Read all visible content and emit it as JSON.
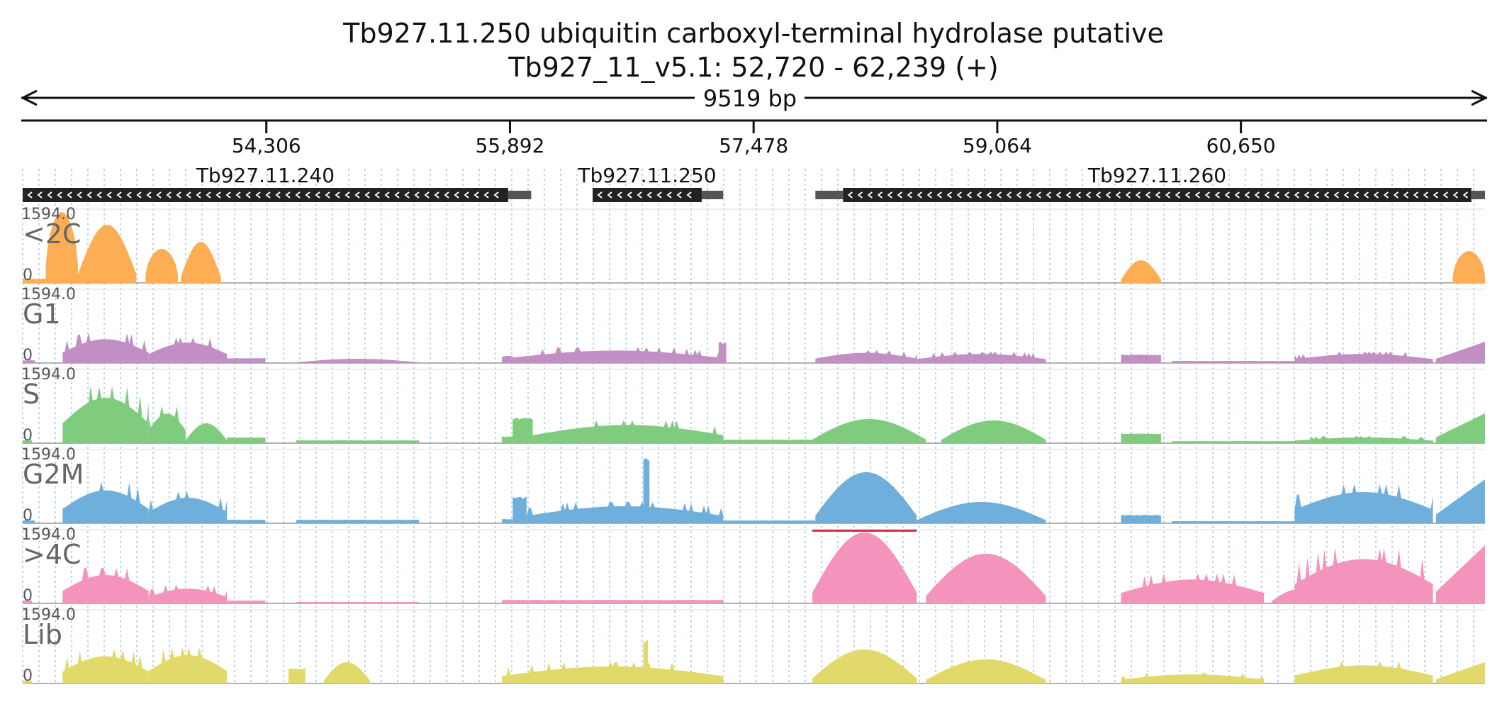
{
  "header": {
    "title_line1": "Tb927.11.250  ubiquitin carboxyl-terminal hydrolase  putative",
    "title_line2": "Tb927_11_v5.1: 52,720 - 62,239 (+)",
    "span_label": "9519 bp"
  },
  "chart_data": {
    "type": "area",
    "title": "Tb927.11.250  ubiquitin carboxyl-terminal hydrolase  putative",
    "locus": {
      "chrom": "Tb927_11_v5.1",
      "start": 52720,
      "end": 62239,
      "strand": "+"
    },
    "span_bp": 9519,
    "xlim": [
      52720,
      62239
    ],
    "x_ticks": [
      {
        "pos": 54306,
        "label": "54,306"
      },
      {
        "pos": 55892,
        "label": "55,892"
      },
      {
        "pos": 57478,
        "label": "57,478"
      },
      {
        "pos": 59064,
        "label": "59,064"
      },
      {
        "pos": 60650,
        "label": "60,650"
      }
    ],
    "genes": [
      {
        "name": "Tb927.11.240",
        "start": 52720,
        "end": 55880,
        "utr_start": 55880,
        "utr_end": 56030,
        "strand": "-"
      },
      {
        "name": "Tb927.11.250",
        "start": 56430,
        "end": 57140,
        "utr_start": 57140,
        "utr_end": 57280,
        "strand": "-"
      },
      {
        "name": "Tb927.11.260",
        "start": 58060,
        "end": 62150,
        "utr_start": 57880,
        "utr_end": 58060,
        "utr2_start": 62150,
        "utr2_end": 62239,
        "strand": "-"
      }
    ],
    "y_max_label": "1594.0",
    "y_min_label": "0",
    "ylim": [
      0,
      1594
    ],
    "series": [
      {
        "name": "<2C",
        "color": "#FDAE55",
        "islands": [
          {
            "start": 52720,
            "end": 52870,
            "peak": 0.06,
            "shape": "flat"
          },
          {
            "start": 52870,
            "end": 53080,
            "peak": 1.0,
            "shape": "saw"
          },
          {
            "start": 53080,
            "end": 53460,
            "peak": 0.82,
            "shape": "hump"
          },
          {
            "start": 53520,
            "end": 53730,
            "peak": 0.48,
            "shape": "saw"
          },
          {
            "start": 53750,
            "end": 54010,
            "peak": 0.58,
            "shape": "hump"
          },
          {
            "start": 59870,
            "end": 60130,
            "peak": 0.32,
            "shape": "hump"
          },
          {
            "start": 62030,
            "end": 62239,
            "peak": 0.45,
            "shape": "saw"
          }
        ]
      },
      {
        "name": "G1",
        "color": "#C28FC4",
        "islands": [
          {
            "start": 52720,
            "end": 52800,
            "peak": 0.04,
            "shape": "flat"
          },
          {
            "start": 52980,
            "end": 53540,
            "peak": 0.42,
            "shape": "spiky"
          },
          {
            "start": 53540,
            "end": 54050,
            "peak": 0.36,
            "shape": "spiky"
          },
          {
            "start": 54050,
            "end": 54300,
            "peak": 0.07,
            "shape": "flat"
          },
          {
            "start": 54500,
            "end": 55300,
            "peak": 0.06,
            "shape": "hump"
          },
          {
            "start": 55840,
            "end": 55910,
            "peak": 0.1,
            "shape": "flat"
          },
          {
            "start": 55910,
            "end": 57250,
            "peak": 0.22,
            "shape": "spiky"
          },
          {
            "start": 57250,
            "end": 57300,
            "peak": 0.3,
            "shape": "flat"
          },
          {
            "start": 57880,
            "end": 58540,
            "peak": 0.18,
            "shape": "spiky"
          },
          {
            "start": 58540,
            "end": 59380,
            "peak": 0.16,
            "shape": "spiky"
          },
          {
            "start": 59870,
            "end": 60130,
            "peak": 0.12,
            "shape": "flat"
          },
          {
            "start": 60200,
            "end": 61000,
            "peak": 0.03,
            "shape": "flat"
          },
          {
            "start": 61000,
            "end": 61900,
            "peak": 0.16,
            "shape": "spiky"
          },
          {
            "start": 61920,
            "end": 62239,
            "peak": 0.3,
            "shape": "rise"
          }
        ]
      },
      {
        "name": "S",
        "color": "#7FCC7E",
        "islands": [
          {
            "start": 52720,
            "end": 52780,
            "peak": 0.04,
            "shape": "flat"
          },
          {
            "start": 52980,
            "end": 53540,
            "peak": 0.8,
            "shape": "spiky"
          },
          {
            "start": 53540,
            "end": 53780,
            "peak": 0.52,
            "shape": "spiky"
          },
          {
            "start": 53780,
            "end": 54050,
            "peak": 0.28,
            "shape": "hump"
          },
          {
            "start": 54050,
            "end": 54300,
            "peak": 0.08,
            "shape": "flat"
          },
          {
            "start": 54500,
            "end": 55300,
            "peak": 0.04,
            "shape": "flat"
          },
          {
            "start": 55840,
            "end": 55910,
            "peak": 0.1,
            "shape": "flat"
          },
          {
            "start": 55910,
            "end": 56040,
            "peak": 0.36,
            "shape": "flat"
          },
          {
            "start": 56040,
            "end": 57280,
            "peak": 0.32,
            "shape": "spiky"
          },
          {
            "start": 57280,
            "end": 57860,
            "peak": 0.05,
            "shape": "flat"
          },
          {
            "start": 57860,
            "end": 58600,
            "peak": 0.34,
            "shape": "hump"
          },
          {
            "start": 58700,
            "end": 59380,
            "peak": 0.32,
            "shape": "hump"
          },
          {
            "start": 59870,
            "end": 60130,
            "peak": 0.14,
            "shape": "flat"
          },
          {
            "start": 60200,
            "end": 61000,
            "peak": 0.03,
            "shape": "flat"
          },
          {
            "start": 61000,
            "end": 61900,
            "peak": 0.1,
            "shape": "spiky"
          },
          {
            "start": 61920,
            "end": 62239,
            "peak": 0.42,
            "shape": "rise"
          }
        ]
      },
      {
        "name": "G2M",
        "color": "#6EAFDB",
        "islands": [
          {
            "start": 52720,
            "end": 52800,
            "peak": 0.04,
            "shape": "flat"
          },
          {
            "start": 52980,
            "end": 53540,
            "peak": 0.58,
            "shape": "spiky"
          },
          {
            "start": 53540,
            "end": 54050,
            "peak": 0.45,
            "shape": "spiky"
          },
          {
            "start": 54050,
            "end": 54300,
            "peak": 0.05,
            "shape": "flat"
          },
          {
            "start": 54500,
            "end": 55300,
            "peak": 0.05,
            "shape": "flat"
          },
          {
            "start": 55840,
            "end": 55910,
            "peak": 0.06,
            "shape": "flat"
          },
          {
            "start": 55910,
            "end": 56000,
            "peak": 0.38,
            "shape": "flat"
          },
          {
            "start": 56000,
            "end": 57280,
            "peak": 0.3,
            "shape": "spiky"
          },
          {
            "start": 56760,
            "end": 56800,
            "peak": 0.98,
            "shape": "flat"
          },
          {
            "start": 57280,
            "end": 57880,
            "peak": 0.04,
            "shape": "flat"
          },
          {
            "start": 57880,
            "end": 58540,
            "peak": 0.72,
            "shape": "hump"
          },
          {
            "start": 58540,
            "end": 59380,
            "peak": 0.3,
            "shape": "hump"
          },
          {
            "start": 59870,
            "end": 60130,
            "peak": 0.12,
            "shape": "flat"
          },
          {
            "start": 60200,
            "end": 61000,
            "peak": 0.03,
            "shape": "flat"
          },
          {
            "start": 61000,
            "end": 61900,
            "peak": 0.55,
            "shape": "spiky"
          },
          {
            "start": 61920,
            "end": 62239,
            "peak": 0.62,
            "shape": "rise"
          }
        ]
      },
      {
        "name": ">4C",
        "color": "#F493BC",
        "islands": [
          {
            "start": 52720,
            "end": 52780,
            "peak": 0.04,
            "shape": "flat"
          },
          {
            "start": 52980,
            "end": 53540,
            "peak": 0.5,
            "shape": "spiky"
          },
          {
            "start": 53540,
            "end": 54050,
            "peak": 0.26,
            "shape": "spiky"
          },
          {
            "start": 54050,
            "end": 54300,
            "peak": 0.04,
            "shape": "flat"
          },
          {
            "start": 54500,
            "end": 55300,
            "peak": 0.02,
            "shape": "flat"
          },
          {
            "start": 55840,
            "end": 57280,
            "peak": 0.05,
            "shape": "flat"
          },
          {
            "start": 57860,
            "end": 58540,
            "peak": 1.0,
            "shape": "hump"
          },
          {
            "start": 58600,
            "end": 59380,
            "peak": 0.7,
            "shape": "hump"
          },
          {
            "start": 59870,
            "end": 60800,
            "peak": 0.42,
            "shape": "spiky"
          },
          {
            "start": 60850,
            "end": 61200,
            "peak": 0.2,
            "shape": "hump"
          },
          {
            "start": 61000,
            "end": 61900,
            "peak": 0.78,
            "shape": "spiky"
          },
          {
            "start": 61920,
            "end": 62239,
            "peak": 0.82,
            "shape": "rise"
          }
        ]
      },
      {
        "name": "Lib",
        "color": "#E1DA6A",
        "islands": [
          {
            "start": 52720,
            "end": 52780,
            "peak": 0.04,
            "shape": "flat"
          },
          {
            "start": 52980,
            "end": 53540,
            "peak": 0.48,
            "shape": "spiky"
          },
          {
            "start": 53540,
            "end": 54050,
            "peak": 0.5,
            "shape": "spiky"
          },
          {
            "start": 54450,
            "end": 54560,
            "peak": 0.22,
            "shape": "flat"
          },
          {
            "start": 54680,
            "end": 54980,
            "peak": 0.3,
            "shape": "hump"
          },
          {
            "start": 55840,
            "end": 57280,
            "peak": 0.3,
            "shape": "spiky"
          },
          {
            "start": 56760,
            "end": 56790,
            "peak": 0.62,
            "shape": "flat"
          },
          {
            "start": 57860,
            "end": 58540,
            "peak": 0.48,
            "shape": "hump"
          },
          {
            "start": 58600,
            "end": 59380,
            "peak": 0.34,
            "shape": "hump"
          },
          {
            "start": 59870,
            "end": 60800,
            "peak": 0.16,
            "shape": "spiky"
          },
          {
            "start": 61000,
            "end": 61900,
            "peak": 0.32,
            "shape": "spiky"
          },
          {
            "start": 61920,
            "end": 62239,
            "peak": 0.3,
            "shape": "rise"
          }
        ]
      }
    ]
  }
}
